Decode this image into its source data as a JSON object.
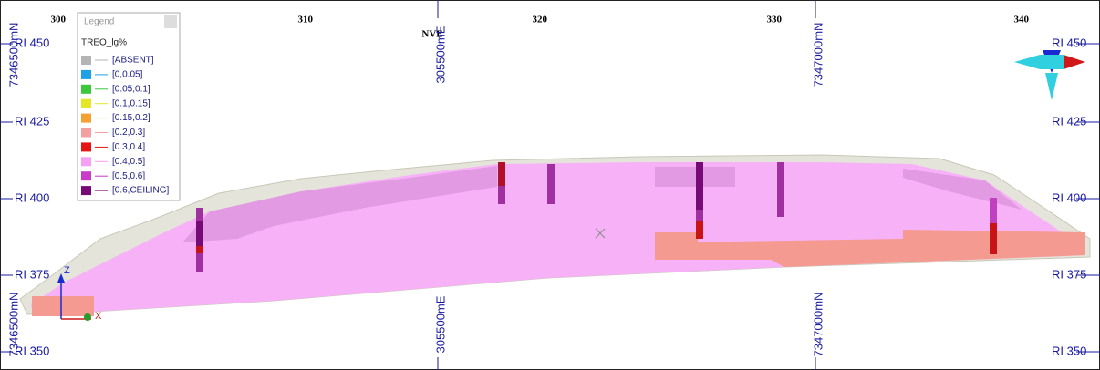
{
  "viewport": {
    "top_labels": [
      "300",
      "310",
      "320",
      "330",
      "340"
    ],
    "top_center_label": "NVE",
    "rl_labels": [
      "RI 450",
      "RI 425",
      "RI 400",
      "RI 375",
      "RI 350"
    ],
    "grid_labels": [
      "7346500mN",
      "305500mE",
      "7347000mN"
    ],
    "triad": {
      "z": "Z",
      "x": "X"
    }
  },
  "legend": {
    "title": "Legend",
    "attribute": "TREO_lg%",
    "items": [
      {
        "label": "[ABSENT]",
        "color": "#b4b4b4"
      },
      {
        "label": "[0,0.05]",
        "color": "#1ea0e6"
      },
      {
        "label": "[0.05,0.1]",
        "color": "#3cc83c"
      },
      {
        "label": "[0.1,0.15]",
        "color": "#e6e628"
      },
      {
        "label": "[0.15,0.2]",
        "color": "#f5a032"
      },
      {
        "label": "[0.2,0.3]",
        "color": "#f5a0a0"
      },
      {
        "label": "[0.3,0.4]",
        "color": "#e61414"
      },
      {
        "label": "[0.4,0.5]",
        "color": "#f5a0f5"
      },
      {
        "label": "[0.5,0.6]",
        "color": "#c83cc8"
      },
      {
        "label": "[0.6,CEILING]",
        "color": "#780a78"
      }
    ]
  }
}
